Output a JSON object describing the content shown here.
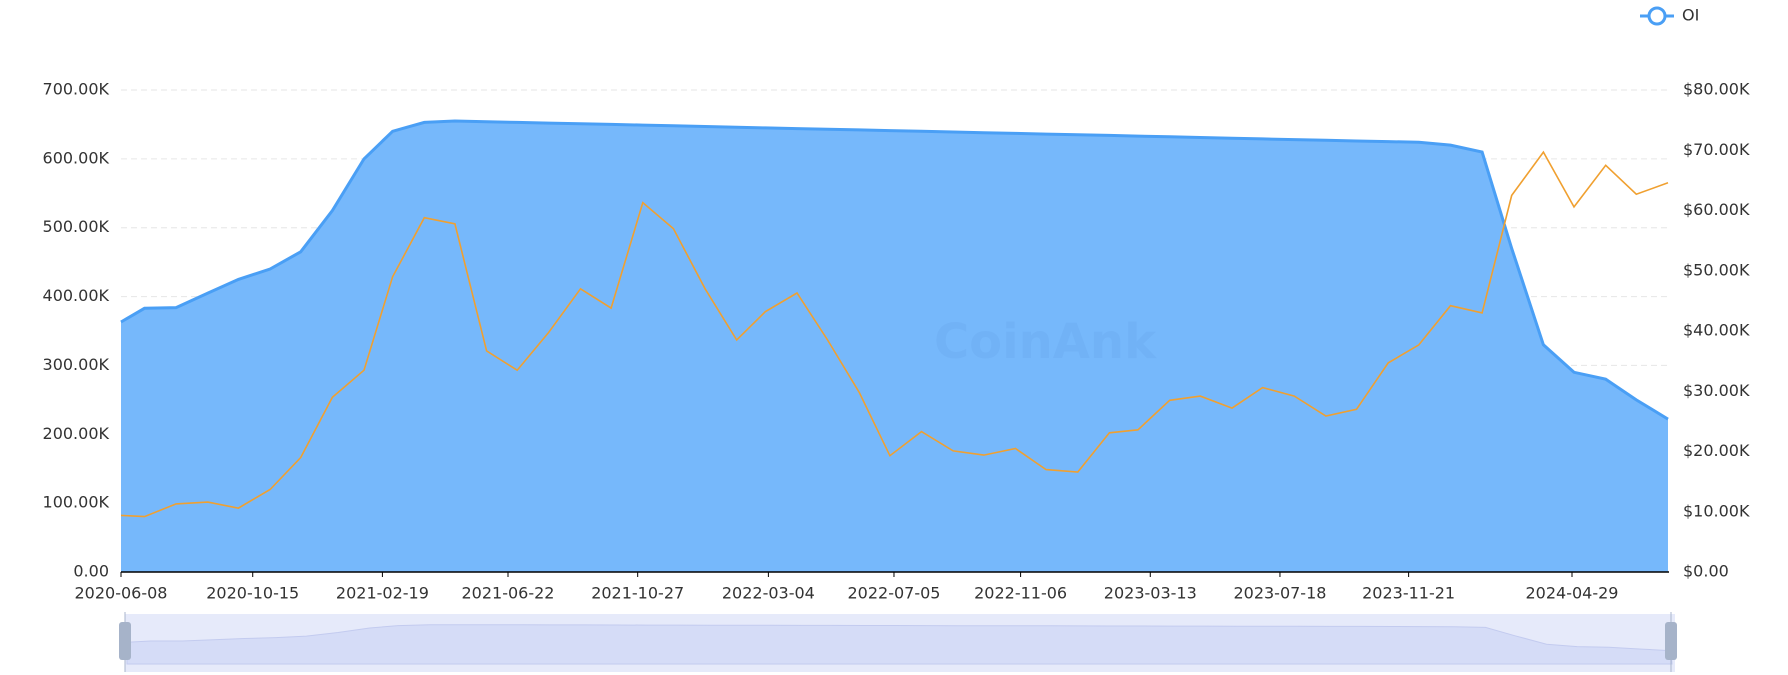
{
  "chart_data": {
    "type": "line",
    "watermark": "CoinAnk",
    "legend": "top-right",
    "grid": true,
    "x": [
      "2020-06-08",
      "2020-07-01",
      "2020-08-01",
      "2020-09-01",
      "2020-10-01",
      "2020-11-01",
      "2020-12-01",
      "2021-01-01",
      "2021-02-01",
      "2021-03-01",
      "2021-04-01",
      "2021-05-01",
      "2021-06-01",
      "2021-07-01",
      "2021-08-01",
      "2021-09-01",
      "2021-10-01",
      "2021-11-01",
      "2021-12-01",
      "2022-01-01",
      "2022-02-01",
      "2022-03-01",
      "2022-04-01",
      "2022-05-01",
      "2022-06-01",
      "2022-07-01",
      "2022-08-01",
      "2022-09-01",
      "2022-10-01",
      "2022-11-01",
      "2022-12-01",
      "2023-01-01",
      "2023-02-01",
      "2023-03-01",
      "2023-04-01",
      "2023-05-01",
      "2023-06-01",
      "2023-07-01",
      "2023-08-01",
      "2023-09-01",
      "2023-10-01",
      "2023-11-01",
      "2023-12-01",
      "2024-01-01",
      "2024-02-01",
      "2024-03-01",
      "2024-04-01",
      "2024-05-01",
      "2024-06-01",
      "2024-07-01",
      "2024-08-01"
    ],
    "xlim": [
      "2020-06-08",
      "2024-08-02"
    ],
    "xticks": [
      "2020-06-08",
      "2020-10-15",
      "2021-02-19",
      "2021-06-22",
      "2021-10-27",
      "2022-03-04",
      "2022-07-05",
      "2022-11-06",
      "2023-03-13",
      "2023-07-18",
      "2023-11-21",
      "2024-04-29"
    ],
    "ylim": [
      0,
      700000
    ],
    "yticks": [
      {
        "value": 0,
        "label": "0.00"
      },
      {
        "value": 100000,
        "label": "100.00K"
      },
      {
        "value": 200000,
        "label": "200.00K"
      },
      {
        "value": 300000,
        "label": "300.00K"
      },
      {
        "value": 400000,
        "label": "400.00K"
      },
      {
        "value": 500000,
        "label": "500.00K"
      },
      {
        "value": 600000,
        "label": "600.00K"
      },
      {
        "value": 700000,
        "label": "700.00K"
      }
    ],
    "y2lim": [
      0,
      80000
    ],
    "y2ticks": [
      {
        "value": 0,
        "label": "$0.00"
      },
      {
        "value": 10000,
        "label": "$10.00K"
      },
      {
        "value": 20000,
        "label": "$20.00K"
      },
      {
        "value": 30000,
        "label": "$30.00K"
      },
      {
        "value": 40000,
        "label": "$40.00K"
      },
      {
        "value": 50000,
        "label": "$50.00K"
      },
      {
        "value": 60000,
        "label": "$60.00K"
      },
      {
        "value": 70000,
        "label": "$70.00K"
      },
      {
        "value": 80000,
        "label": "$80.00K"
      }
    ],
    "series": [
      {
        "name": "OI",
        "type": "area",
        "color": "#4a9ff5",
        "fill": "#76b8fb",
        "values": [
          363000,
          383000,
          384000,
          405000,
          425000,
          440000,
          465000,
          525000,
          600000,
          640000,
          653000,
          655000,
          654000,
          653000,
          652000,
          651000,
          650000,
          649000,
          648000,
          647000,
          646000,
          645000,
          644000,
          643000,
          642000,
          641000,
          640000,
          639000,
          638000,
          637000,
          636000,
          635000,
          634000,
          633000,
          632000,
          631000,
          630000,
          629000,
          628000,
          627000,
          626000,
          625000,
          624000,
          620000,
          610000,
          470000,
          330000,
          290000,
          280000,
          250000,
          222000
        ]
      },
      {
        "type": "line",
        "axis": "y2",
        "color": "#f0a030",
        "values": [
          9400,
          9200,
          11300,
          11600,
          10600,
          13700,
          19000,
          29000,
          33500,
          49000,
          58800,
          57800,
          36700,
          33500,
          39800,
          47000,
          43800,
          61300,
          57000,
          47000,
          38500,
          43200,
          46300,
          38500,
          29800,
          19300,
          23300,
          20100,
          19400,
          20500,
          17000,
          16600,
          23100,
          23600,
          28500,
          29200,
          27200,
          30600,
          29200,
          25900,
          27000,
          34700,
          37700,
          44200,
          43000,
          62500,
          69700,
          60600,
          67500,
          62700,
          64600
        ]
      }
    ]
  }
}
